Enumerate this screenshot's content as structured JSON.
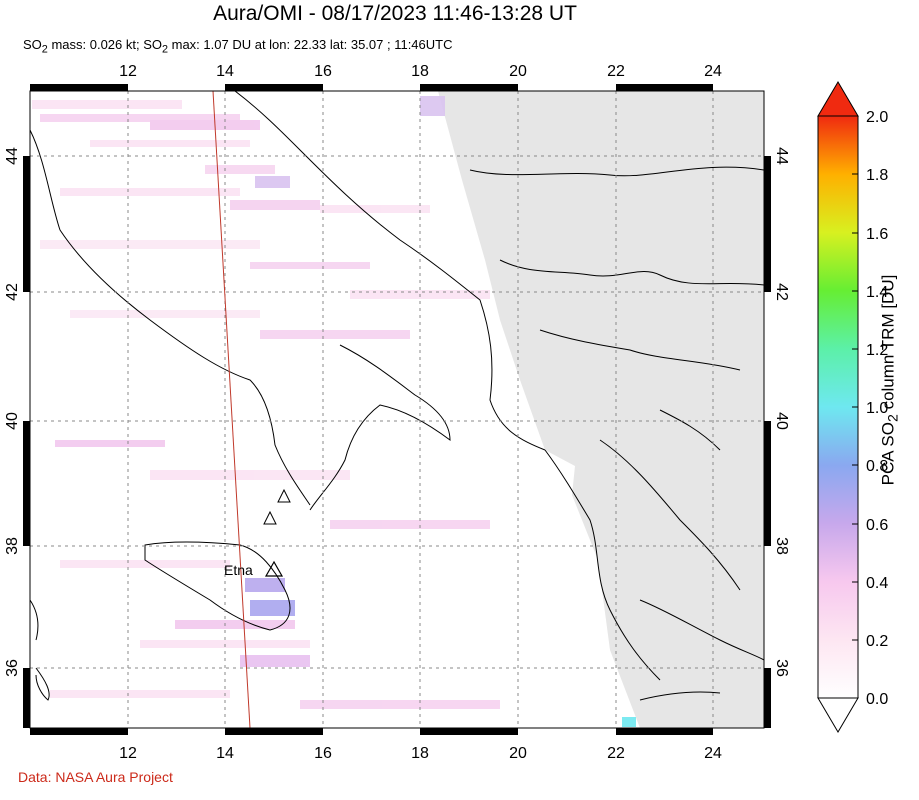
{
  "header": {
    "title": "Aura/OMI - 08/17/2023 11:46-13:28 UT",
    "subtitle_pre": "SO",
    "subtitle_sub": "2",
    "subtitle_mid": " mass: 0.026 kt; SO",
    "subtitle_sub2": "2",
    "subtitle_post": " max: 1.07 DU at lon: 22.33 lat: 35.07 ; 11:46UTC"
  },
  "map": {
    "lon_range": [
      10,
      25
    ],
    "lat_range": [
      35,
      45
    ],
    "lon_ticks": [
      12,
      14,
      16,
      18,
      20,
      22,
      24
    ],
    "lat_ticks": [
      36,
      38,
      40,
      42,
      44
    ],
    "lon_tick_labels": [
      "12",
      "14",
      "16",
      "18",
      "20",
      "22",
      "24"
    ],
    "lat_tick_labels": [
      "36",
      "38",
      "40",
      "42",
      "44"
    ],
    "volcano_label": "Etna",
    "volcano_lon": 15.0,
    "volcano_lat": 37.75,
    "no_data_color": "#e6e6e6",
    "track_color": "#c0392b"
  },
  "colorbar": {
    "ticks": [
      "0.0",
      "0.2",
      "0.4",
      "0.6",
      "0.8",
      "1.0",
      "1.2",
      "1.4",
      "1.6",
      "1.8",
      "2.0"
    ],
    "label_pre": "PCA SO",
    "label_sub": "2",
    "label_post": " column TRM [DU]",
    "vmin": 0.0,
    "vmax": 2.0
  },
  "footer": {
    "credit": "Data: NASA Aura Project"
  }
}
